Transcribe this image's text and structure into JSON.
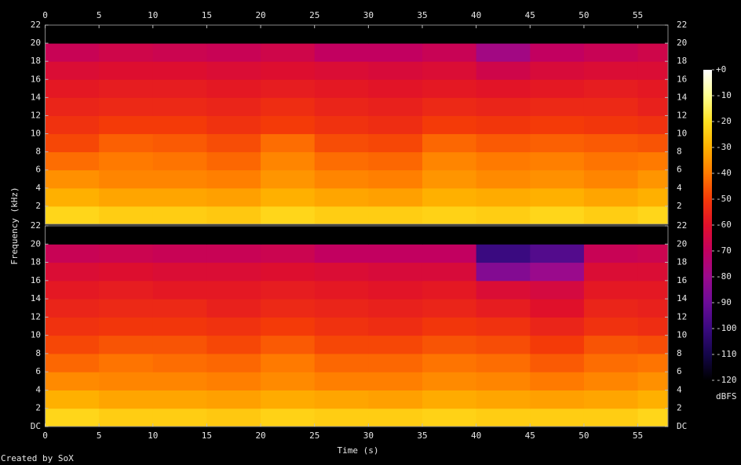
{
  "chart_data": [
    {
      "type": "heatmap",
      "x": [
        0,
        5,
        10,
        15,
        20,
        25,
        30,
        35,
        40,
        45,
        50,
        55,
        57.8
      ],
      "y": [
        0,
        2,
        4,
        6,
        8,
        10,
        12,
        14,
        16,
        18,
        20,
        22
      ],
      "values": [
        [
          -22,
          -24,
          -24,
          -25,
          -22,
          -24,
          -24,
          -23,
          -24,
          -22,
          -24,
          -22
        ],
        [
          -30,
          -32,
          -32,
          -33,
          -30,
          -32,
          -33,
          -30,
          -31,
          -30,
          -32,
          -30
        ],
        [
          -36,
          -38,
          -38,
          -39,
          -35,
          -38,
          -39,
          -35,
          -37,
          -36,
          -38,
          -35
        ],
        [
          -42,
          -40,
          -41,
          -43,
          -38,
          -42,
          -43,
          -38,
          -40,
          -39,
          -41,
          -40
        ],
        [
          -48,
          -44,
          -45,
          -47,
          -42,
          -47,
          -48,
          -43,
          -45,
          -44,
          -45,
          -46
        ],
        [
          -52,
          -50,
          -50,
          -52,
          -50,
          -52,
          -53,
          -50,
          -51,
          -50,
          -51,
          -52
        ],
        [
          -55,
          -54,
          -54,
          -55,
          -53,
          -55,
          -56,
          -54,
          -55,
          -54,
          -54,
          -56
        ],
        [
          -58,
          -57,
          -57,
          -58,
          -57,
          -58,
          -59,
          -58,
          -59,
          -58,
          -57,
          -58
        ],
        [
          -62,
          -61,
          -61,
          -62,
          -61,
          -62,
          -63,
          -62,
          -66,
          -63,
          -62,
          -62
        ],
        [
          -68,
          -66,
          -67,
          -68,
          -66,
          -70,
          -70,
          -68,
          -78,
          -70,
          -68,
          -66
        ],
        [
          -120,
          -120,
          -120,
          -120,
          -120,
          -120,
          -120,
          -120,
          -120,
          -120,
          -120,
          -120
        ]
      ],
      "xlim": [
        0,
        57.8
      ],
      "ylim": [
        0,
        22
      ],
      "xticks": [
        0,
        5,
        10,
        15,
        20,
        25,
        30,
        35,
        40,
        45,
        50,
        55
      ],
      "yticks": [
        2,
        4,
        6,
        8,
        10,
        12,
        14,
        16,
        18,
        20,
        22
      ]
    },
    {
      "type": "heatmap",
      "x": [
        0,
        5,
        10,
        15,
        20,
        25,
        30,
        35,
        40,
        45,
        50,
        55,
        57.8
      ],
      "y": [
        0,
        2,
        4,
        6,
        8,
        10,
        12,
        14,
        16,
        18,
        20,
        22
      ],
      "values": [
        [
          -22,
          -24,
          -24,
          -25,
          -23,
          -24,
          -24,
          -23,
          -24,
          -24,
          -24,
          -22
        ],
        [
          -30,
          -32,
          -32,
          -33,
          -31,
          -32,
          -33,
          -31,
          -32,
          -33,
          -32,
          -30
        ],
        [
          -37,
          -38,
          -38,
          -39,
          -37,
          -39,
          -39,
          -37,
          -38,
          -40,
          -38,
          -36
        ],
        [
          -43,
          -41,
          -42,
          -43,
          -40,
          -43,
          -43,
          -41,
          -42,
          -45,
          -42,
          -41
        ],
        [
          -48,
          -46,
          -46,
          -48,
          -45,
          -48,
          -48,
          -46,
          -47,
          -50,
          -46,
          -47
        ],
        [
          -52,
          -51,
          -51,
          -52,
          -50,
          -52,
          -53,
          -51,
          -52,
          -55,
          -52,
          -53
        ],
        [
          -55,
          -54,
          -54,
          -56,
          -54,
          -55,
          -56,
          -55,
          -57,
          -60,
          -55,
          -56
        ],
        [
          -58,
          -57,
          -58,
          -58,
          -57,
          -58,
          -59,
          -58,
          -62,
          -64,
          -58,
          -58
        ],
        [
          -62,
          -61,
          -62,
          -62,
          -61,
          -62,
          -63,
          -63,
          -85,
          -80,
          -62,
          -62
        ],
        [
          -68,
          -67,
          -68,
          -68,
          -67,
          -70,
          -70,
          -70,
          -100,
          -95,
          -68,
          -67
        ],
        [
          -120,
          -120,
          -120,
          -120,
          -120,
          -120,
          -120,
          -120,
          -120,
          -120,
          -120,
          -120
        ]
      ],
      "xlim": [
        0,
        57.8
      ],
      "ylim": [
        0,
        22
      ],
      "xticks": [
        0,
        5,
        10,
        15,
        20,
        25,
        30,
        35,
        40,
        45,
        50,
        55
      ],
      "yticks": [
        {
          "value": 0,
          "label": "DC"
        },
        2,
        4,
        6,
        8,
        10,
        12,
        14,
        16,
        18,
        20,
        22
      ]
    }
  ],
  "x_label": "Time (s)",
  "y_label": "Frequency (kHz)",
  "colorbar": {
    "label": "dBFS",
    "lim": [
      -120,
      0
    ],
    "ticks": [
      {
        "value": 0,
        "label": "+0"
      },
      -10,
      -20,
      -30,
      -40,
      -50,
      -60,
      -70,
      -80,
      -90,
      -100,
      -110,
      -120
    ],
    "colors": [
      "#000000",
      "#14064a",
      "#3a0a80",
      "#6c0c98",
      "#9a0a8c",
      "#c20060",
      "#e0102a",
      "#f43a08",
      "#ff7a00",
      "#ffb000",
      "#ffe020",
      "#ffff90",
      "#ffffff"
    ]
  },
  "footer": "Created by SoX"
}
